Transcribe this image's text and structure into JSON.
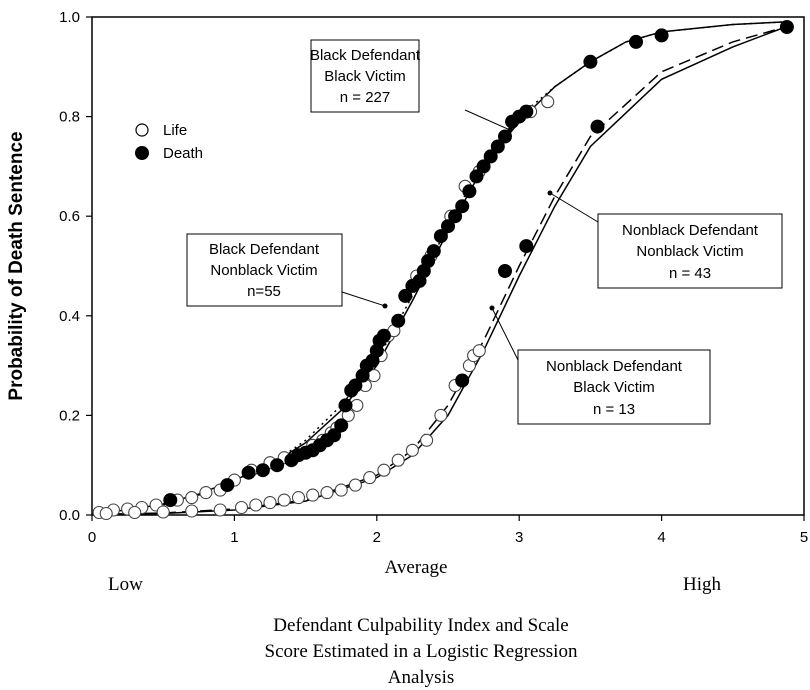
{
  "chart_data": {
    "type": "scatter",
    "xlim": [
      0,
      5
    ],
    "ylim": [
      0,
      1
    ],
    "x_ticks": [
      "0",
      "1",
      "2",
      "3",
      "4",
      "5"
    ],
    "y_ticks": [
      "0.0",
      "0.2",
      "0.4",
      "0.6",
      "0.8",
      "1.0"
    ],
    "ylabel": "Probability of Death Sentence",
    "x_scale_labels": {
      "low": "Low",
      "average": "Average",
      "high": "High"
    },
    "xlabel_lines": [
      "Defendant Culpability Index and Scale",
      "Score Estimated in a Logistic Regression",
      "Analysis"
    ],
    "legend": {
      "position": "upper-left",
      "entries": [
        {
          "label": "Life",
          "marker": "open-circle"
        },
        {
          "label": "Death",
          "marker": "filled-circle"
        }
      ]
    },
    "annotations": [
      {
        "lines": [
          "Black Defendant",
          "Black Victim",
          "n = 227"
        ]
      },
      {
        "lines": [
          "Black Defendant",
          "Nonblack Victim",
          "n=55"
        ]
      },
      {
        "lines": [
          "Nonblack Defendant",
          "Nonblack Victim",
          "n = 43"
        ]
      },
      {
        "lines": [
          "Nonblack Defendant",
          "Black Victim",
          "n = 13"
        ]
      }
    ],
    "curves": [
      {
        "style": "dotted",
        "points": [
          [
            0,
            0.003
          ],
          [
            0.25,
            0.008
          ],
          [
            0.5,
            0.02
          ],
          [
            0.75,
            0.04
          ],
          [
            1,
            0.07
          ],
          [
            1.25,
            0.1
          ],
          [
            1.5,
            0.15
          ],
          [
            1.75,
            0.22
          ],
          [
            2,
            0.31
          ],
          [
            2.25,
            0.44
          ],
          [
            2.5,
            0.58
          ],
          [
            2.75,
            0.71
          ],
          [
            3,
            0.8
          ],
          [
            3.25,
            0.86
          ],
          [
            3.5,
            0.91
          ],
          [
            3.75,
            0.95
          ],
          [
            4,
            0.97
          ],
          [
            4.5,
            0.985
          ],
          [
            4.85,
            0.99
          ]
        ]
      },
      {
        "style": "solid",
        "points": [
          [
            0,
            0.004
          ],
          [
            0.25,
            0.01
          ],
          [
            0.5,
            0.022
          ],
          [
            0.75,
            0.042
          ],
          [
            1,
            0.07
          ],
          [
            1.25,
            0.1
          ],
          [
            1.5,
            0.145
          ],
          [
            1.75,
            0.21
          ],
          [
            2,
            0.3
          ],
          [
            2.25,
            0.43
          ],
          [
            2.5,
            0.57
          ],
          [
            2.75,
            0.7
          ],
          [
            3,
            0.79
          ],
          [
            3.25,
            0.86
          ],
          [
            3.5,
            0.91
          ],
          [
            3.75,
            0.95
          ],
          [
            4,
            0.97
          ],
          [
            4.5,
            0.985
          ],
          [
            4.85,
            0.99
          ]
        ]
      },
      {
        "style": "dashed",
        "points": [
          [
            0,
            0.001
          ],
          [
            0.5,
            0.004
          ],
          [
            1,
            0.012
          ],
          [
            1.5,
            0.03
          ],
          [
            2,
            0.08
          ],
          [
            2.25,
            0.13
          ],
          [
            2.5,
            0.22
          ],
          [
            2.75,
            0.35
          ],
          [
            3,
            0.5
          ],
          [
            3.25,
            0.64
          ],
          [
            3.5,
            0.76
          ],
          [
            4,
            0.89
          ],
          [
            4.5,
            0.95
          ],
          [
            4.87,
            0.98
          ]
        ]
      },
      {
        "style": "solid",
        "points": [
          [
            0,
            0.001
          ],
          [
            0.5,
            0.003
          ],
          [
            1,
            0.01
          ],
          [
            1.5,
            0.028
          ],
          [
            2,
            0.075
          ],
          [
            2.25,
            0.12
          ],
          [
            2.5,
            0.2
          ],
          [
            2.75,
            0.33
          ],
          [
            3,
            0.48
          ],
          [
            3.25,
            0.62
          ],
          [
            3.5,
            0.74
          ],
          [
            4,
            0.875
          ],
          [
            4.5,
            0.94
          ],
          [
            4.87,
            0.98
          ]
        ]
      }
    ],
    "series": [
      {
        "marker": "filled",
        "points": [
          [
            0.55,
            0.03
          ],
          [
            0.95,
            0.06
          ],
          [
            1.1,
            0.085
          ],
          [
            1.2,
            0.09
          ],
          [
            1.3,
            0.1
          ],
          [
            1.4,
            0.11
          ],
          [
            1.45,
            0.12
          ],
          [
            1.5,
            0.125
          ],
          [
            1.55,
            0.13
          ],
          [
            1.6,
            0.14
          ],
          [
            1.65,
            0.15
          ],
          [
            1.7,
            0.16
          ],
          [
            1.75,
            0.18
          ],
          [
            1.78,
            0.22
          ],
          [
            1.82,
            0.25
          ],
          [
            1.85,
            0.26
          ],
          [
            1.9,
            0.28
          ],
          [
            1.93,
            0.3
          ],
          [
            1.97,
            0.31
          ],
          [
            2.0,
            0.33
          ],
          [
            2.02,
            0.35
          ],
          [
            2.05,
            0.36
          ],
          [
            2.15,
            0.39
          ],
          [
            2.2,
            0.44
          ],
          [
            2.25,
            0.46
          ],
          [
            2.3,
            0.47
          ],
          [
            2.33,
            0.49
          ],
          [
            2.36,
            0.51
          ],
          [
            2.4,
            0.53
          ],
          [
            2.45,
            0.56
          ],
          [
            2.5,
            0.58
          ],
          [
            2.55,
            0.6
          ],
          [
            2.6,
            0.62
          ],
          [
            2.65,
            0.65
          ],
          [
            2.7,
            0.68
          ],
          [
            2.75,
            0.7
          ],
          [
            2.8,
            0.72
          ],
          [
            2.85,
            0.74
          ],
          [
            2.9,
            0.76
          ],
          [
            2.95,
            0.79
          ],
          [
            3.0,
            0.8
          ],
          [
            3.05,
            0.81
          ],
          [
            3.5,
            0.91
          ],
          [
            3.82,
            0.95
          ],
          [
            4.0,
            0.963
          ],
          [
            2.6,
            0.27
          ],
          [
            2.9,
            0.49
          ],
          [
            3.05,
            0.54
          ],
          [
            3.55,
            0.78
          ],
          [
            4.88,
            0.98
          ]
        ]
      },
      {
        "marker": "open",
        "points": [
          [
            0.05,
            0.005
          ],
          [
            0.15,
            0.01
          ],
          [
            0.25,
            0.012
          ],
          [
            0.35,
            0.015
          ],
          [
            0.45,
            0.02
          ],
          [
            0.6,
            0.03
          ],
          [
            0.7,
            0.035
          ],
          [
            0.8,
            0.045
          ],
          [
            0.9,
            0.05
          ],
          [
            1.0,
            0.07
          ],
          [
            1.12,
            0.09
          ],
          [
            1.25,
            0.105
          ],
          [
            1.35,
            0.115
          ],
          [
            1.45,
            0.12
          ],
          [
            1.55,
            0.14
          ],
          [
            1.62,
            0.15
          ],
          [
            1.68,
            0.165
          ],
          [
            1.72,
            0.175
          ],
          [
            1.8,
            0.2
          ],
          [
            1.86,
            0.22
          ],
          [
            1.92,
            0.26
          ],
          [
            1.98,
            0.28
          ],
          [
            2.03,
            0.32
          ],
          [
            2.08,
            0.36
          ],
          [
            2.12,
            0.37
          ],
          [
            2.28,
            0.48
          ],
          [
            2.38,
            0.52
          ],
          [
            2.52,
            0.6
          ],
          [
            2.62,
            0.66
          ],
          [
            2.72,
            0.69
          ],
          [
            3.08,
            0.81
          ],
          [
            3.2,
            0.83
          ],
          [
            0.1,
            0.003
          ],
          [
            0.3,
            0.005
          ],
          [
            0.5,
            0.006
          ],
          [
            0.7,
            0.008
          ],
          [
            0.9,
            0.01
          ],
          [
            1.05,
            0.015
          ],
          [
            1.15,
            0.02
          ],
          [
            1.25,
            0.025
          ],
          [
            1.35,
            0.03
          ],
          [
            1.45,
            0.035
          ],
          [
            1.55,
            0.04
          ],
          [
            1.65,
            0.045
          ],
          [
            1.75,
            0.05
          ],
          [
            1.85,
            0.06
          ],
          [
            1.95,
            0.075
          ],
          [
            2.05,
            0.09
          ],
          [
            2.15,
            0.11
          ],
          [
            2.25,
            0.13
          ],
          [
            2.35,
            0.15
          ],
          [
            2.45,
            0.2
          ],
          [
            2.55,
            0.26
          ],
          [
            2.65,
            0.3
          ],
          [
            2.68,
            0.32
          ],
          [
            2.72,
            0.33
          ]
        ]
      }
    ]
  }
}
